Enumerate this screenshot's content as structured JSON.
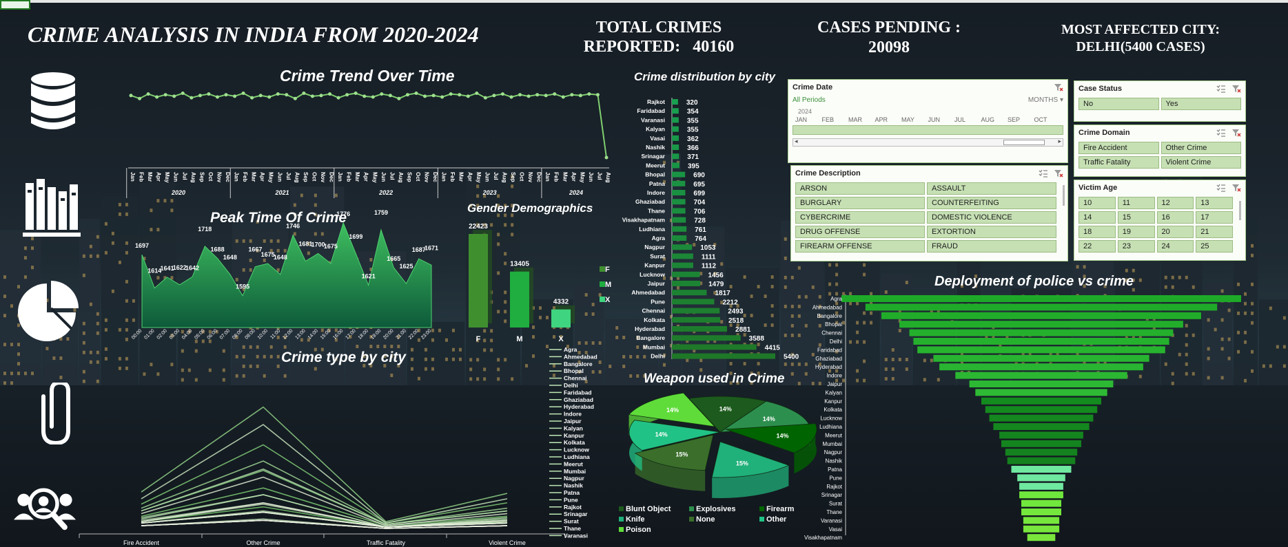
{
  "header": {
    "title": "CRIME ANALYSIS IN INDIA FROM 2020-2024",
    "kpi_total_line1": "TOTAL CRIMES",
    "kpi_total_line2": "REPORTED:   40160",
    "kpi_pending_line1": "CASES PENDING :",
    "kpi_pending_line2": "20098",
    "kpi_city_line1": "MOST AFFECTED CITY:",
    "kpi_city_line2": "DELHI(5400 CASES)"
  },
  "icons": [
    "database-icon",
    "books-icon",
    "pie-chart-icon",
    "paperclip-icon",
    "user-search-icon"
  ],
  "colors": {
    "accent": "#3fbf5f",
    "light_green": "#5fdc6f",
    "dark_green": "#1e7a2c",
    "slicer_button": "#c6e0b4",
    "slicer_border": "#a8d08d"
  },
  "chart_data": [
    {
      "id": "trend",
      "type": "line",
      "title": "Crime Trend Over Time",
      "months": [
        "Jan",
        "Feb",
        "Mar",
        "Apr",
        "May",
        "Jun",
        "Jul",
        "Aug",
        "Sep",
        "Oct",
        "Nov",
        "Dec"
      ],
      "years": [
        "2020",
        "2021",
        "2022",
        "2023",
        "2024"
      ],
      "last_year_months": [
        "Jan",
        "Feb",
        "Mar",
        "Apr",
        "May",
        "Jun",
        "Jul",
        "Aug"
      ],
      "values": [
        0.92,
        0.88,
        0.94,
        0.9,
        0.93,
        0.91,
        0.95,
        0.89,
        0.92,
        0.94,
        0.9,
        0.93,
        0.91,
        0.95,
        0.89,
        0.92,
        0.9,
        0.94,
        0.93,
        0.88,
        0.95,
        0.91,
        0.92,
        0.94,
        0.89,
        0.93,
        0.95,
        0.91,
        0.9,
        0.94,
        0.92,
        0.88,
        0.93,
        0.95,
        0.91,
        0.92,
        0.9,
        0.94,
        0.93,
        0.91,
        0.95,
        0.89,
        0.92,
        0.94,
        0.9,
        0.93,
        0.91,
        0.93,
        0.92,
        0.94,
        0.9,
        0.93,
        0.92,
        0.94,
        0.93,
        0.1
      ]
    },
    {
      "id": "peak",
      "type": "area",
      "title": "Peak Time Of Crime",
      "categories": [
        "00:00",
        "01:00",
        "02:00",
        "03:00",
        "04:00",
        "05:00",
        "06:00",
        "07:00",
        "08:00",
        "09:00",
        "10:00",
        "11:00",
        "12:00",
        "13:00",
        "14:00",
        "15:00",
        "16:00",
        "17:00",
        "18:00",
        "19:00",
        "20:00",
        "21:00",
        "22:00",
        "23:00"
      ],
      "values": [
        1697,
        1614,
        1641,
        1622,
        1642,
        1718,
        1688,
        1648,
        1595,
        1667,
        1675,
        1648,
        1746,
        1681,
        1700,
        1675,
        1776,
        1699,
        1621,
        1759,
        1665,
        1625,
        1687,
        1671
      ],
      "ylim": [
        1550,
        1800
      ]
    },
    {
      "id": "gender",
      "type": "bar",
      "title": "Gender Demographics",
      "categories": [
        "F",
        "M",
        "X"
      ],
      "values": [
        22423,
        13405,
        4332
      ],
      "legend": [
        "F",
        "M",
        "X"
      ]
    },
    {
      "id": "citydist",
      "type": "bar",
      "title": "Crime distribution by city",
      "categories": [
        "Rajkot",
        "Faridabad",
        "Varanasi",
        "Kalyan",
        "Vasai",
        "Nashik",
        "Srinagar",
        "Meerut",
        "Bhopal",
        "Patna",
        "Indore",
        "Ghaziabad",
        "Thane",
        "Visakhapatnam",
        "Ludhiana",
        "Agra",
        "Nagpur",
        "Surat",
        "Kanpur",
        "Lucknow",
        "Jaipur",
        "Ahmedabad",
        "Pune",
        "Chennai",
        "Kolkata",
        "Hyderabad",
        "Bangalore",
        "Mumbai",
        "Delhi"
      ],
      "values": [
        320,
        354,
        355,
        355,
        362,
        366,
        371,
        395,
        690,
        695,
        699,
        704,
        706,
        728,
        761,
        764,
        1053,
        1111,
        1112,
        1456,
        1479,
        1817,
        2212,
        2493,
        2518,
        2881,
        3588,
        4415,
        5400
      ],
      "labels": [
        "320",
        "354",
        "355",
        "355",
        "362",
        "366",
        "371",
        "395",
        "690",
        "695",
        "699",
        "704",
        "706",
        "728",
        "761",
        "764",
        "1053",
        "1111",
        "1112",
        "1456",
        "1479",
        "1817",
        "2212",
        "2493",
        "2518",
        "2881",
        "3588",
        "4415",
        "5400"
      ]
    },
    {
      "id": "citytype",
      "type": "line",
      "title": "Crime type by city",
      "categories": [
        "Fire Accident",
        "Other Crime",
        "Traffic Fatality",
        "Violent Crime"
      ],
      "legend": [
        "Agra",
        "Ahmedabad",
        "Bangalore",
        "Bhopal",
        "Chennai",
        "Delhi",
        "Faridabad",
        "Ghaziabad",
        "Hyderabad",
        "Indore",
        "Jaipur",
        "Kalyan",
        "Kanpur",
        "Kolkata",
        "Lucknow",
        "Ludhiana",
        "Meerut",
        "Mumbai",
        "Nagpur",
        "Nashik",
        "Patna",
        "Pune",
        "Rajkot",
        "Srinagar",
        "Surat",
        "Thane",
        "Varanasi"
      ],
      "series": [
        [
          0.05,
          0.16,
          0.01,
          0.05
        ],
        [
          0.09,
          0.3,
          0.02,
          0.09
        ],
        [
          0.18,
          0.62,
          0.04,
          0.19
        ],
        [
          0.04,
          0.12,
          0.01,
          0.04
        ],
        [
          0.13,
          0.43,
          0.03,
          0.13
        ],
        [
          0.27,
          0.9,
          0.05,
          0.26
        ],
        [
          0.02,
          0.06,
          0.0,
          0.02
        ],
        [
          0.04,
          0.12,
          0.01,
          0.04
        ],
        [
          0.15,
          0.5,
          0.03,
          0.15
        ],
        [
          0.04,
          0.12,
          0.01,
          0.04
        ],
        [
          0.08,
          0.25,
          0.01,
          0.07
        ],
        [
          0.02,
          0.06,
          0.0,
          0.02
        ],
        [
          0.06,
          0.19,
          0.01,
          0.06
        ],
        [
          0.13,
          0.44,
          0.03,
          0.13
        ],
        [
          0.07,
          0.25,
          0.01,
          0.08
        ],
        [
          0.04,
          0.13,
          0.01,
          0.04
        ],
        [
          0.02,
          0.07,
          0.0,
          0.02
        ],
        [
          0.22,
          0.77,
          0.04,
          0.22
        ],
        [
          0.05,
          0.18,
          0.01,
          0.05
        ],
        [
          0.02,
          0.06,
          0.0,
          0.02
        ],
        [
          0.04,
          0.12,
          0.01,
          0.04
        ],
        [
          0.11,
          0.38,
          0.02,
          0.11
        ],
        [
          0.02,
          0.06,
          0.0,
          0.02
        ],
        [
          0.02,
          0.06,
          0.0,
          0.02
        ],
        [
          0.05,
          0.19,
          0.01,
          0.06
        ],
        [
          0.04,
          0.12,
          0.01,
          0.04
        ],
        [
          0.02,
          0.06,
          0.0,
          0.02
        ]
      ]
    },
    {
      "id": "weapon",
      "type": "pie",
      "title": "Weapon used in Crime",
      "categories": [
        "Blunt Object",
        "Explosives",
        "Firearm",
        "Knife",
        "None",
        "Other",
        "Poison"
      ],
      "labels": [
        "14%",
        "14%",
        "14%",
        "15%",
        "15%",
        "14%",
        "14%"
      ],
      "values": [
        14,
        14,
        14,
        15,
        15,
        14,
        14
      ],
      "colors": [
        "#1d5a1d",
        "#2d8f4e",
        "#006400",
        "#20b07a",
        "#3a6e2a",
        "#21c285",
        "#5fdc3a"
      ]
    },
    {
      "id": "deploy",
      "type": "bar",
      "title": "Deployment of police vs crime",
      "categories": [
        "Agra",
        "Ahmedabad",
        "Bangalore",
        "Bhopal",
        "Chennai",
        "Delhi",
        "Faridabad",
        "Ghaziabad",
        "Hyderabad",
        "Indore",
        "Jaipur",
        "Kalyan",
        "Kanpur",
        "Kolkata",
        "Lucknow",
        "Ludhiana",
        "Meerut",
        "Mumbai",
        "Nagpur",
        "Nashik",
        "Patna",
        "Pune",
        "Rajkot",
        "Srinagar",
        "Surat",
        "Thane",
        "Varanasi",
        "Vasai",
        "Visakhapatnam"
      ],
      "values": [
        100,
        88,
        80,
        71,
        66,
        64,
        62,
        54,
        51,
        43,
        36,
        33,
        30,
        28,
        26,
        24,
        21,
        20,
        18,
        17,
        15,
        12,
        11,
        11,
        10,
        10,
        9,
        9,
        7
      ]
    }
  ],
  "slicers": {
    "date": {
      "title": "Crime Date",
      "all_periods": "All Periods",
      "level": "MONTHS",
      "year": "2024",
      "months": [
        "JAN",
        "FEB",
        "MAR",
        "APR",
        "MAY",
        "JUN",
        "JUL",
        "AUG",
        "SEP",
        "OCT"
      ]
    },
    "status": {
      "title": "Case Status",
      "items": [
        "No",
        "Yes"
      ]
    },
    "domain": {
      "title": "Crime Domain",
      "items": [
        "Fire Accident",
        "Other Crime",
        "Traffic Fatality",
        "Violent Crime"
      ]
    },
    "description": {
      "title": "Crime Description",
      "items": [
        "ARSON",
        "ASSAULT",
        "BURGLARY",
        "COUNTERFEITING",
        "CYBERCRIME",
        "DOMESTIC VIOLENCE",
        "DRUG OFFENSE",
        "EXTORTION",
        "FIREARM OFFENSE",
        "FRAUD"
      ]
    },
    "age": {
      "title": "Victim Age",
      "items": [
        "10",
        "11",
        "12",
        "13",
        "14",
        "15",
        "16",
        "17",
        "18",
        "19",
        "20",
        "21",
        "22",
        "23",
        "24",
        "25"
      ]
    }
  }
}
